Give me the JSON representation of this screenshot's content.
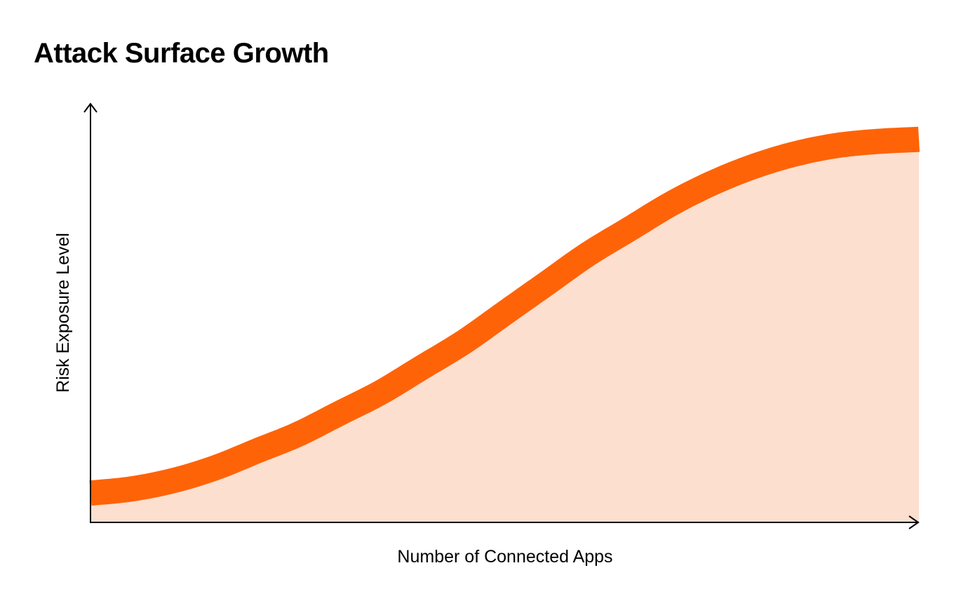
{
  "chart_data": {
    "type": "area",
    "title": "Attack Surface Growth",
    "xlabel": "Number of Connected Apps",
    "ylabel": "Risk Exposure Level",
    "grid": false,
    "legend": "none",
    "colors": {
      "line": "#FF6308",
      "fill": "#FDDFCF",
      "axis": "#000000"
    },
    "x": [
      0,
      0.05,
      0.1,
      0.15,
      0.2,
      0.25,
      0.3,
      0.35,
      0.4,
      0.45,
      0.5,
      0.55,
      0.6,
      0.65,
      0.7,
      0.75,
      0.8,
      0.85,
      0.9,
      0.95,
      1
    ],
    "y": [
      0.07,
      0.08,
      0.1,
      0.13,
      0.17,
      0.21,
      0.26,
      0.31,
      0.37,
      0.43,
      0.5,
      0.57,
      0.64,
      0.7,
      0.76,
      0.81,
      0.85,
      0.88,
      0.9,
      0.91,
      0.915
    ],
    "xlim": [
      0,
      1
    ],
    "ylim": [
      0,
      1
    ]
  }
}
